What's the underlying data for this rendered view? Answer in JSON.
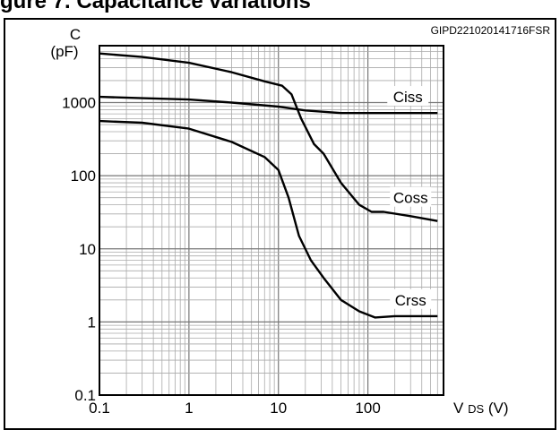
{
  "page": {
    "title_fragment": "gure 7. Capacitance variations"
  },
  "chart_data": {
    "type": "line",
    "figure_id": "GIPD221020141716FSR",
    "ylabel_line1": "C",
    "ylabel_line2": "(pF)",
    "xlabel_main": "V",
    "xlabel_sub": "DS",
    "xlabel_unit": "(V)",
    "x_scale": "log",
    "y_scale": "log",
    "xlim": [
      0.1,
      700
    ],
    "ylim": [
      0.1,
      6000
    ],
    "grid": true,
    "x_ticks": [
      {
        "value": 0.1,
        "label": "0.1"
      },
      {
        "value": 1,
        "label": "1"
      },
      {
        "value": 10,
        "label": "10"
      },
      {
        "value": 100,
        "label": "100"
      }
    ],
    "y_ticks": [
      {
        "value": 0.1,
        "label": "0.1"
      },
      {
        "value": 1,
        "label": "1"
      },
      {
        "value": 10,
        "label": "10"
      },
      {
        "value": 100,
        "label": "100"
      },
      {
        "value": 1000,
        "label": "1000"
      }
    ],
    "series": [
      {
        "name": "Ciss",
        "color": "#000000",
        "points": [
          [
            0.1,
            1200
          ],
          [
            0.3,
            1150
          ],
          [
            1,
            1100
          ],
          [
            3,
            1000
          ],
          [
            10,
            880
          ],
          [
            20,
            780
          ],
          [
            50,
            720
          ],
          [
            100,
            720
          ],
          [
            300,
            720
          ],
          [
            600,
            720
          ]
        ]
      },
      {
        "name": "Coss",
        "color": "#000000",
        "points": [
          [
            0.1,
            4700
          ],
          [
            0.3,
            4200
          ],
          [
            1,
            3500
          ],
          [
            3,
            2600
          ],
          [
            7,
            1950
          ],
          [
            11,
            1700
          ],
          [
            14,
            1300
          ],
          [
            18,
            600
          ],
          [
            25,
            270
          ],
          [
            32,
            200
          ],
          [
            50,
            80
          ],
          [
            80,
            40
          ],
          [
            110,
            32
          ],
          [
            150,
            32
          ],
          [
            300,
            28
          ],
          [
            600,
            24
          ]
        ]
      },
      {
        "name": "Crss",
        "color": "#000000",
        "points": [
          [
            0.1,
            560
          ],
          [
            0.3,
            530
          ],
          [
            1,
            440
          ],
          [
            3,
            290
          ],
          [
            7,
            180
          ],
          [
            10,
            120
          ],
          [
            13,
            50
          ],
          [
            17,
            15
          ],
          [
            23,
            7
          ],
          [
            32,
            4
          ],
          [
            50,
            2
          ],
          [
            80,
            1.4
          ],
          [
            120,
            1.15
          ],
          [
            200,
            1.2
          ],
          [
            600,
            1.2
          ]
        ]
      }
    ],
    "annotation_positions": {
      "Ciss": [
        280,
        1200
      ],
      "Coss": [
        300,
        50
      ],
      "Crss": [
        300,
        2
      ]
    }
  }
}
